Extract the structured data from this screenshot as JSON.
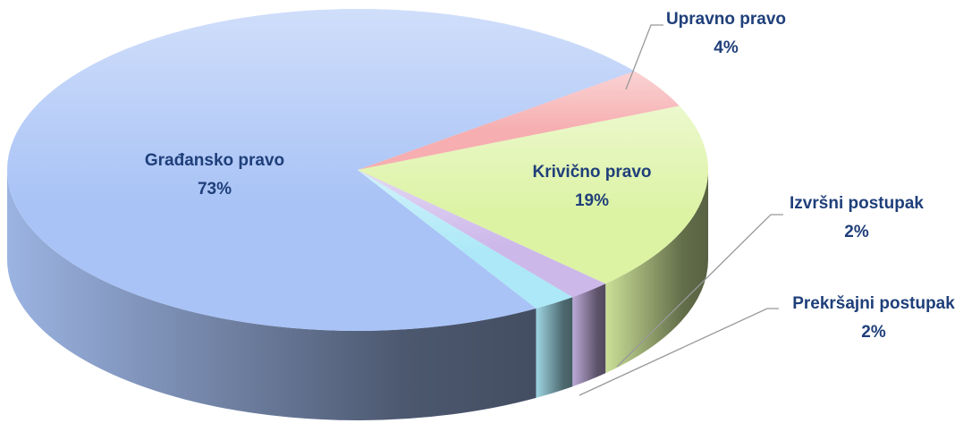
{
  "chart_data": {
    "type": "pie3d",
    "categories": [
      "Građansko pravo",
      "Upravno pravo",
      "Krivično pravo",
      "Izvršni postupak",
      "Prekršajni postupak"
    ],
    "values": [
      73,
      4,
      19,
      2,
      2
    ],
    "value_labels": [
      "73%",
      "4%",
      "19%",
      "2%",
      "2%"
    ],
    "colors": [
      "#a9c3f6",
      "#f6aeb0",
      "#dcf3a4",
      "#cdb8ea",
      "#ace8f7"
    ]
  }
}
